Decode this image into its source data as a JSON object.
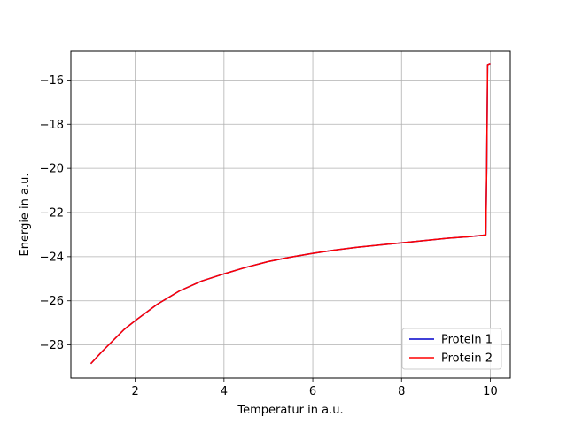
{
  "chart_data": {
    "type": "line",
    "xlabel": "Temperatur in a.u.",
    "ylabel": "Energie in a.u.",
    "xlim": [
      0.55,
      10.45
    ],
    "ylim": [
      -29.5,
      -14.7
    ],
    "xticks": [
      2,
      4,
      6,
      8,
      10
    ],
    "yticks": [
      -28,
      -26,
      -24,
      -22,
      -20,
      -18,
      -16
    ],
    "grid": true,
    "legend_position": "lower right",
    "series": [
      {
        "name": "Protein 1",
        "color": "#0000cc",
        "x": [
          1.0,
          1.25,
          1.5,
          1.75,
          2.0,
          2.5,
          3.0,
          3.5,
          4.0,
          4.5,
          5.0,
          5.5,
          6.0,
          6.5,
          7.0,
          7.5,
          8.0,
          8.5,
          9.0,
          9.5,
          9.9,
          9.92,
          9.94,
          10.0
        ],
        "y": [
          -28.85,
          -28.3,
          -27.8,
          -27.3,
          -26.9,
          -26.15,
          -25.55,
          -25.1,
          -24.78,
          -24.48,
          -24.22,
          -24.02,
          -23.85,
          -23.7,
          -23.57,
          -23.47,
          -23.37,
          -23.27,
          -23.17,
          -23.1,
          -23.02,
          -20.0,
          -15.3,
          -15.25
        ]
      },
      {
        "name": "Protein 2",
        "color": "#ff0000",
        "x": [
          1.0,
          1.25,
          1.5,
          1.75,
          2.0,
          2.5,
          3.0,
          3.5,
          4.0,
          4.5,
          5.0,
          5.5,
          6.0,
          6.5,
          7.0,
          7.5,
          8.0,
          8.5,
          9.0,
          9.5,
          9.9,
          9.92,
          9.94,
          10.0
        ],
        "y": [
          -28.85,
          -28.3,
          -27.8,
          -27.3,
          -26.9,
          -26.15,
          -25.55,
          -25.1,
          -24.78,
          -24.48,
          -24.22,
          -24.02,
          -23.85,
          -23.7,
          -23.57,
          -23.47,
          -23.37,
          -23.27,
          -23.17,
          -23.1,
          -23.02,
          -20.0,
          -15.3,
          -15.25
        ]
      }
    ]
  }
}
